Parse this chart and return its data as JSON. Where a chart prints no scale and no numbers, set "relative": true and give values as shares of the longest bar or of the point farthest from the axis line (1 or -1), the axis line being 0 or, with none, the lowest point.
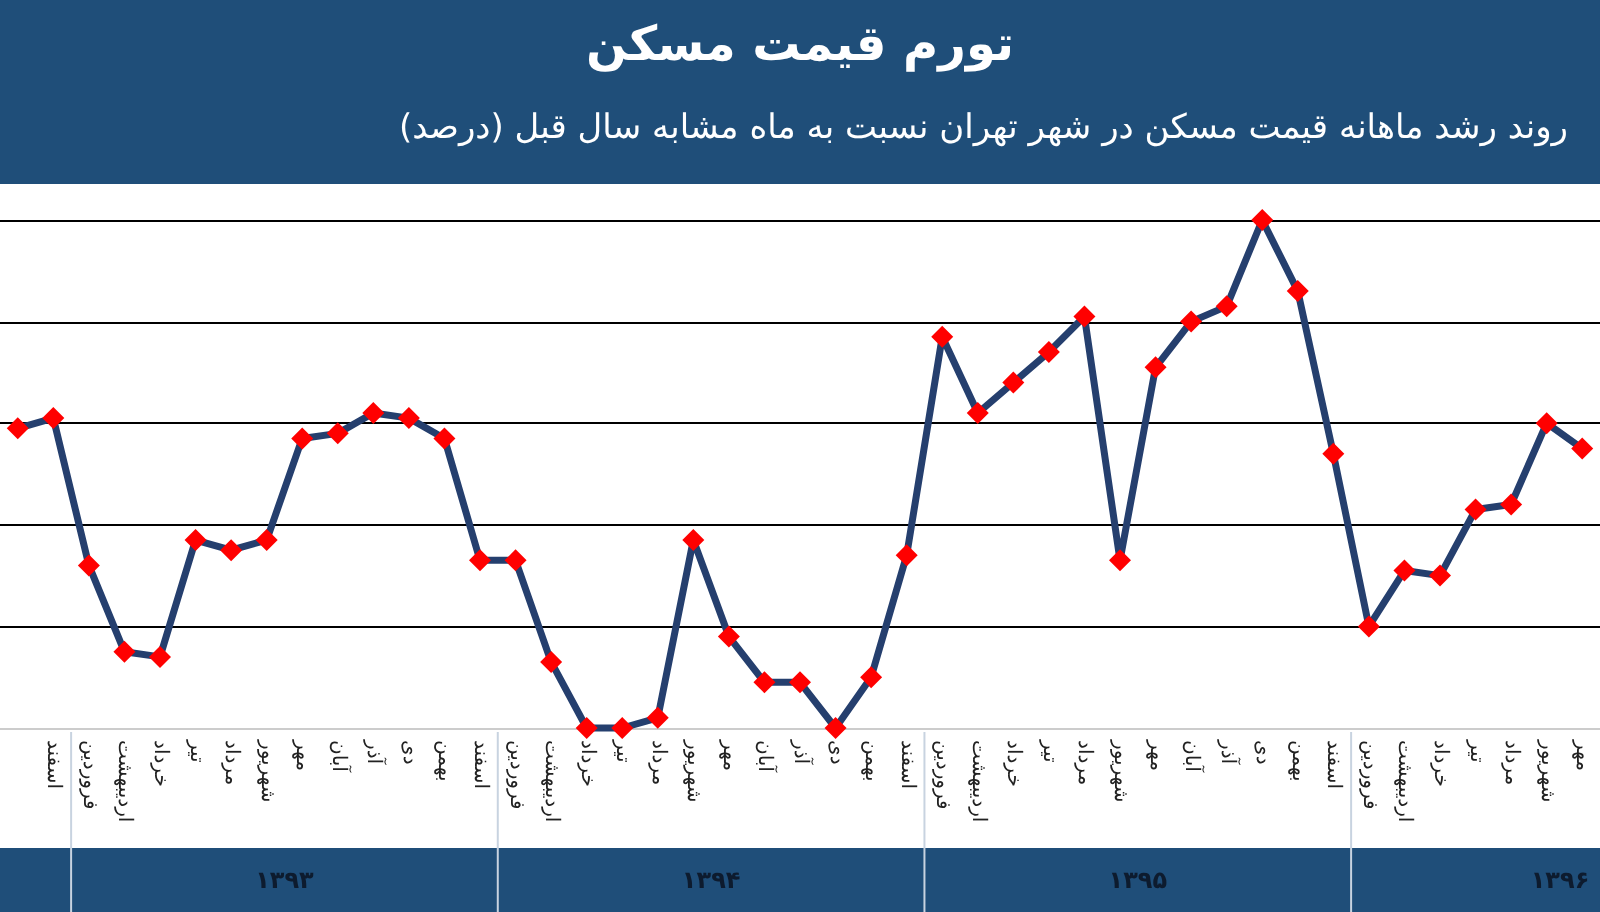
{
  "chart_data": {
    "type": "line",
    "title": "تورم قیمت مسکن",
    "subtitle": "روند رشد ماهانه قیمت مسکن در شهر تهران نسبت به ماه مشابه سال قبل (درصد)",
    "categories": [
      null,
      "اسفند",
      "فروردین",
      "اردیبهشت",
      "خرداد",
      "تیر",
      "مرداد",
      "شهریور",
      "مهر",
      "آبان",
      "آذر",
      "دی",
      "بهمن",
      "اسفند",
      "فروردین",
      "اردیبهشت",
      "خرداد",
      "تیر",
      "مرداد",
      "شهریور",
      "مهر",
      "آبان",
      "آذر",
      "دی",
      "بهمن",
      "اسفند",
      "فروردین",
      "اردیبهشت",
      "خرداد",
      "تیر",
      "مرداد",
      "شهریور",
      "مهر",
      "آبان",
      "آذر",
      "دی",
      "بهمن",
      "اسفند",
      "فروردین",
      "اردیبهشت",
      "خرداد",
      "تیر",
      "مرداد",
      "شهریور",
      "مهر"
    ],
    "series": [
      {
        "color": "#253f6e",
        "values": [
          0.59,
          0.61,
          0.32,
          0.15,
          0.14,
          0.37,
          0.35,
          0.37,
          0.57,
          0.58,
          0.62,
          0.61,
          0.57,
          0.33,
          0.33,
          0.13,
          0,
          0,
          0.02,
          0.37,
          0.18,
          0.09,
          0.09,
          0,
          0.1,
          0.34,
          0.77,
          0.62,
          0.68,
          0.74,
          0.81,
          0.33,
          0.71,
          0.8,
          0.83,
          1,
          0.86,
          0.54,
          0.2,
          0.31,
          0.3,
          0.43,
          0.44,
          0.6,
          0.55
        ]
      }
    ],
    "colors": [
      "#ff0000",
      "#ff0000",
      "#ff0000",
      "#ff0000",
      "#ff0000",
      "#ff0000",
      "#ff0000",
      "#ff0000",
      "#ff0000",
      "#ff0000",
      "#ff0000",
      "#ff0000",
      "#ff0000",
      "#ff0000",
      "#ff0000",
      "#ff0000",
      "#ff0000",
      "#ff0000",
      "#ff0000",
      "#ff0000",
      "#ff0000",
      "#ff0000",
      "#ff0000",
      "#ff0000",
      "#ff0000",
      "#ff0000",
      "#ff0000",
      "#ff0000",
      "#ff0000",
      "#ff0000",
      "#ff0000",
      "#ff0000",
      "#ff0000",
      "#ff0000",
      "#ff0000",
      "#ff0000",
      "#ff0000",
      "#ff0000",
      "#ff0000",
      "#ff0000",
      "#ff0000",
      "#ff0000",
      "#ff0000",
      "#ff0000",
      "#ff0000"
    ],
    "relative": true,
    "annotations": [
      "۱۳۹۳",
      "۱۳۹۴",
      "۱۳۹۵",
      "۱۳۹۶"
    ],
    "grid": "y",
    "marker": "diamond",
    "line_style": "solid"
  }
}
